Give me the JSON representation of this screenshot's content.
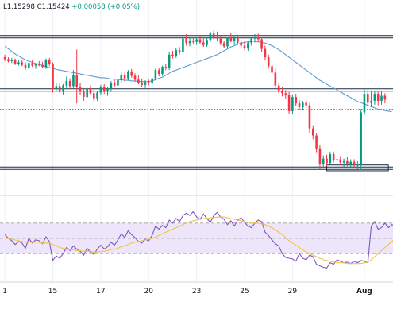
{
  "ohlc": {
    "low": "L1.15298",
    "close": "C1.15424",
    "change": "+0.00058 (+0.05%)"
  },
  "colors": {
    "up": "#089981",
    "down": "#f23645",
    "ma": "#5b9bd5",
    "rsi": "#7e57c2",
    "rsi_ma": "#f0c24b",
    "levels": "#1a2b45",
    "rsi_band": "#ede6fb"
  },
  "chart_data": [
    {
      "type": "candlestick",
      "title": "",
      "x_tick_labels": [
        "1",
        "15",
        "17",
        "20",
        "23",
        "25",
        "29",
        "Aug"
      ],
      "x_tick_index": [
        0,
        14,
        28,
        42,
        56,
        70,
        84,
        105
      ],
      "ylim": [
        1.15,
        1.177
      ],
      "grid": true,
      "horizontal_levels": [
        1.174,
        1.1657,
        1.1535
      ],
      "highlighted_zone": [
        1.1531,
        1.154
      ],
      "current_price_line": 1.1627,
      "moving_average": [
        1.1725,
        1.1721,
        1.1717,
        1.1713,
        1.171,
        1.1707,
        1.1704,
        1.1702,
        1.17,
        1.1698,
        1.1697,
        1.1695,
        1.1693,
        1.1692,
        1.1691,
        1.1689,
        1.1688,
        1.1687,
        1.1686,
        1.1685,
        1.1684,
        1.1683,
        1.1682,
        1.1681,
        1.168,
        1.1679,
        1.1678,
        1.1677,
        1.1676,
        1.1676,
        1.1675,
        1.1674,
        1.1674,
        1.1673,
        1.1673,
        1.1672,
        1.1672,
        1.1671,
        1.1671,
        1.167,
        1.167,
        1.167,
        1.167,
        1.1671,
        1.1673,
        1.1675,
        1.1677,
        1.168,
        1.1683,
        1.1686,
        1.1688,
        1.169,
        1.1692,
        1.1694,
        1.1696,
        1.1698,
        1.17,
        1.1702,
        1.1704,
        1.1706,
        1.1708,
        1.171,
        1.1712,
        1.1715,
        1.1718,
        1.1721,
        1.1724,
        1.1726,
        1.1728,
        1.173,
        1.1731,
        1.1732,
        1.1733,
        1.1733,
        1.1732,
        1.1731,
        1.173,
        1.1728,
        1.1726,
        1.1723,
        1.172,
        1.1716,
        1.1712,
        1.1708,
        1.1704,
        1.17,
        1.1696,
        1.1692,
        1.1688,
        1.1684,
        1.168,
        1.1676,
        1.1672,
        1.1669,
        1.1666,
        1.1663,
        1.166,
        1.1657,
        1.1654,
        1.1651,
        1.1648,
        1.1645,
        1.1642,
        1.1639,
        1.1637,
        1.1635,
        1.1633,
        1.1631,
        1.1629,
        1.1627,
        1.1626,
        1.1625,
        1.1624,
        1.1623
      ],
      "candles": [
        {
          "o": 1.1708,
          "h": 1.1712,
          "l": 1.1702,
          "c": 1.1705
        },
        {
          "o": 1.1705,
          "h": 1.1708,
          "l": 1.17,
          "c": 1.1702
        },
        {
          "o": 1.1702,
          "h": 1.1707,
          "l": 1.1699,
          "c": 1.1704
        },
        {
          "o": 1.1704,
          "h": 1.1706,
          "l": 1.1696,
          "c": 1.1698
        },
        {
          "o": 1.1698,
          "h": 1.1703,
          "l": 1.1695,
          "c": 1.17
        },
        {
          "o": 1.17,
          "h": 1.1704,
          "l": 1.1694,
          "c": 1.1696
        },
        {
          "o": 1.1696,
          "h": 1.17,
          "l": 1.1688,
          "c": 1.1691
        },
        {
          "o": 1.1691,
          "h": 1.1701,
          "l": 1.1689,
          "c": 1.1699
        },
        {
          "o": 1.1699,
          "h": 1.1703,
          "l": 1.1693,
          "c": 1.1695
        },
        {
          "o": 1.1695,
          "h": 1.1699,
          "l": 1.169,
          "c": 1.1697
        },
        {
          "o": 1.1697,
          "h": 1.1702,
          "l": 1.1694,
          "c": 1.1696
        },
        {
          "o": 1.1696,
          "h": 1.1701,
          "l": 1.1691,
          "c": 1.1693
        },
        {
          "o": 1.1693,
          "h": 1.1706,
          "l": 1.169,
          "c": 1.1704
        },
        {
          "o": 1.1704,
          "h": 1.1707,
          "l": 1.1694,
          "c": 1.1697
        },
        {
          "o": 1.1697,
          "h": 1.17,
          "l": 1.1653,
          "c": 1.1658
        },
        {
          "o": 1.1658,
          "h": 1.1667,
          "l": 1.1655,
          "c": 1.1663
        },
        {
          "o": 1.1663,
          "h": 1.1668,
          "l": 1.1652,
          "c": 1.1656
        },
        {
          "o": 1.1656,
          "h": 1.1666,
          "l": 1.165,
          "c": 1.1664
        },
        {
          "o": 1.1664,
          "h": 1.1678,
          "l": 1.1658,
          "c": 1.1671
        },
        {
          "o": 1.1671,
          "h": 1.1675,
          "l": 1.166,
          "c": 1.1663
        },
        {
          "o": 1.1663,
          "h": 1.1688,
          "l": 1.166,
          "c": 1.168
        },
        {
          "o": 1.168,
          "h": 1.172,
          "l": 1.1636,
          "c": 1.1662
        },
        {
          "o": 1.1662,
          "h": 1.1668,
          "l": 1.165,
          "c": 1.1655
        },
        {
          "o": 1.1655,
          "h": 1.166,
          "l": 1.164,
          "c": 1.1646
        },
        {
          "o": 1.1646,
          "h": 1.1662,
          "l": 1.1643,
          "c": 1.1659
        },
        {
          "o": 1.1659,
          "h": 1.1664,
          "l": 1.165,
          "c": 1.1652
        },
        {
          "o": 1.1652,
          "h": 1.1658,
          "l": 1.1638,
          "c": 1.1644
        },
        {
          "o": 1.1644,
          "h": 1.1656,
          "l": 1.164,
          "c": 1.1653
        },
        {
          "o": 1.1653,
          "h": 1.1665,
          "l": 1.1649,
          "c": 1.1661
        },
        {
          "o": 1.1661,
          "h": 1.1666,
          "l": 1.1651,
          "c": 1.1655
        },
        {
          "o": 1.1655,
          "h": 1.1662,
          "l": 1.1648,
          "c": 1.1658
        },
        {
          "o": 1.1658,
          "h": 1.1671,
          "l": 1.1654,
          "c": 1.1668
        },
        {
          "o": 1.1668,
          "h": 1.1674,
          "l": 1.1661,
          "c": 1.1664
        },
        {
          "o": 1.1664,
          "h": 1.1676,
          "l": 1.166,
          "c": 1.1672
        },
        {
          "o": 1.1672,
          "h": 1.1684,
          "l": 1.1668,
          "c": 1.168
        },
        {
          "o": 1.168,
          "h": 1.1684,
          "l": 1.167,
          "c": 1.1675
        },
        {
          "o": 1.1675,
          "h": 1.1688,
          "l": 1.1672,
          "c": 1.1686
        },
        {
          "o": 1.1686,
          "h": 1.169,
          "l": 1.1676,
          "c": 1.1679
        },
        {
          "o": 1.1679,
          "h": 1.1683,
          "l": 1.167,
          "c": 1.1673
        },
        {
          "o": 1.1673,
          "h": 1.168,
          "l": 1.1666,
          "c": 1.1668
        },
        {
          "o": 1.1668,
          "h": 1.1674,
          "l": 1.1661,
          "c": 1.1665
        },
        {
          "o": 1.1665,
          "h": 1.1672,
          "l": 1.166,
          "c": 1.1669
        },
        {
          "o": 1.1669,
          "h": 1.1673,
          "l": 1.1664,
          "c": 1.1667
        },
        {
          "o": 1.1667,
          "h": 1.1677,
          "l": 1.1663,
          "c": 1.1675
        },
        {
          "o": 1.1675,
          "h": 1.169,
          "l": 1.1672,
          "c": 1.1688
        },
        {
          "o": 1.1688,
          "h": 1.1692,
          "l": 1.1678,
          "c": 1.1682
        },
        {
          "o": 1.1682,
          "h": 1.1695,
          "l": 1.1679,
          "c": 1.1693
        },
        {
          "o": 1.1693,
          "h": 1.1698,
          "l": 1.1688,
          "c": 1.1691
        },
        {
          "o": 1.1691,
          "h": 1.1716,
          "l": 1.1688,
          "c": 1.1712
        },
        {
          "o": 1.1712,
          "h": 1.1718,
          "l": 1.1706,
          "c": 1.171
        },
        {
          "o": 1.171,
          "h": 1.1722,
          "l": 1.1707,
          "c": 1.1719
        },
        {
          "o": 1.1719,
          "h": 1.1724,
          "l": 1.1712,
          "c": 1.1716
        },
        {
          "o": 1.1716,
          "h": 1.1741,
          "l": 1.1713,
          "c": 1.1737
        },
        {
          "o": 1.1737,
          "h": 1.1744,
          "l": 1.1726,
          "c": 1.173
        },
        {
          "o": 1.173,
          "h": 1.1738,
          "l": 1.1725,
          "c": 1.1734
        },
        {
          "o": 1.1734,
          "h": 1.174,
          "l": 1.1729,
          "c": 1.1732
        },
        {
          "o": 1.1732,
          "h": 1.1739,
          "l": 1.1727,
          "c": 1.1736
        },
        {
          "o": 1.1736,
          "h": 1.1742,
          "l": 1.1728,
          "c": 1.1731
        },
        {
          "o": 1.1731,
          "h": 1.1737,
          "l": 1.1724,
          "c": 1.1727
        },
        {
          "o": 1.1727,
          "h": 1.1738,
          "l": 1.1724,
          "c": 1.1735
        },
        {
          "o": 1.1735,
          "h": 1.1748,
          "l": 1.1732,
          "c": 1.1745
        },
        {
          "o": 1.1745,
          "h": 1.175,
          "l": 1.1736,
          "c": 1.174
        },
        {
          "o": 1.174,
          "h": 1.1748,
          "l": 1.1734,
          "c": 1.1737
        },
        {
          "o": 1.1737,
          "h": 1.1741,
          "l": 1.1727,
          "c": 1.173
        },
        {
          "o": 1.173,
          "h": 1.1734,
          "l": 1.1722,
          "c": 1.1725
        },
        {
          "o": 1.1725,
          "h": 1.174,
          "l": 1.1722,
          "c": 1.1738
        },
        {
          "o": 1.1738,
          "h": 1.1746,
          "l": 1.1731,
          "c": 1.1734
        },
        {
          "o": 1.1734,
          "h": 1.1742,
          "l": 1.1727,
          "c": 1.174
        },
        {
          "o": 1.174,
          "h": 1.1743,
          "l": 1.1728,
          "c": 1.1731
        },
        {
          "o": 1.1731,
          "h": 1.1735,
          "l": 1.1721,
          "c": 1.1726
        },
        {
          "o": 1.1726,
          "h": 1.1733,
          "l": 1.1719,
          "c": 1.1722
        },
        {
          "o": 1.1722,
          "h": 1.1733,
          "l": 1.1718,
          "c": 1.173
        },
        {
          "o": 1.173,
          "h": 1.174,
          "l": 1.1726,
          "c": 1.1737
        },
        {
          "o": 1.1737,
          "h": 1.1744,
          "l": 1.1731,
          "c": 1.174
        },
        {
          "o": 1.174,
          "h": 1.1745,
          "l": 1.1733,
          "c": 1.1736
        },
        {
          "o": 1.1736,
          "h": 1.174,
          "l": 1.1716,
          "c": 1.1721
        },
        {
          "o": 1.1721,
          "h": 1.1726,
          "l": 1.1703,
          "c": 1.1708
        },
        {
          "o": 1.1708,
          "h": 1.1712,
          "l": 1.169,
          "c": 1.1694
        },
        {
          "o": 1.1694,
          "h": 1.1698,
          "l": 1.1679,
          "c": 1.1684
        },
        {
          "o": 1.1684,
          "h": 1.169,
          "l": 1.166,
          "c": 1.1664
        },
        {
          "o": 1.1664,
          "h": 1.1668,
          "l": 1.1652,
          "c": 1.1656
        },
        {
          "o": 1.1656,
          "h": 1.1661,
          "l": 1.1647,
          "c": 1.1652
        },
        {
          "o": 1.1652,
          "h": 1.1657,
          "l": 1.1644,
          "c": 1.1649
        },
        {
          "o": 1.1649,
          "h": 1.1654,
          "l": 1.162,
          "c": 1.1624
        },
        {
          "o": 1.1624,
          "h": 1.165,
          "l": 1.162,
          "c": 1.1646
        },
        {
          "o": 1.1646,
          "h": 1.1651,
          "l": 1.1632,
          "c": 1.1636
        },
        {
          "o": 1.1636,
          "h": 1.1641,
          "l": 1.1626,
          "c": 1.163
        },
        {
          "o": 1.163,
          "h": 1.164,
          "l": 1.1625,
          "c": 1.1637
        },
        {
          "o": 1.1637,
          "h": 1.1643,
          "l": 1.1629,
          "c": 1.1633
        },
        {
          "o": 1.1633,
          "h": 1.1637,
          "l": 1.159,
          "c": 1.1597
        },
        {
          "o": 1.1597,
          "h": 1.1602,
          "l": 1.158,
          "c": 1.1586
        },
        {
          "o": 1.1586,
          "h": 1.159,
          "l": 1.156,
          "c": 1.1566
        },
        {
          "o": 1.1566,
          "h": 1.1571,
          "l": 1.1534,
          "c": 1.1541
        },
        {
          "o": 1.1541,
          "h": 1.1555,
          "l": 1.1536,
          "c": 1.155
        },
        {
          "o": 1.155,
          "h": 1.1556,
          "l": 1.1538,
          "c": 1.1543
        },
        {
          "o": 1.1543,
          "h": 1.1561,
          "l": 1.154,
          "c": 1.1557
        },
        {
          "o": 1.1557,
          "h": 1.1561,
          "l": 1.1544,
          "c": 1.1547
        },
        {
          "o": 1.1547,
          "h": 1.1553,
          "l": 1.154,
          "c": 1.1549
        },
        {
          "o": 1.1549,
          "h": 1.1554,
          "l": 1.154,
          "c": 1.1544
        },
        {
          "o": 1.1544,
          "h": 1.155,
          "l": 1.1537,
          "c": 1.1546
        },
        {
          "o": 1.1546,
          "h": 1.1552,
          "l": 1.1538,
          "c": 1.1542
        },
        {
          "o": 1.1542,
          "h": 1.1549,
          "l": 1.1537,
          "c": 1.1545
        },
        {
          "o": 1.1545,
          "h": 1.1549,
          "l": 1.1535,
          "c": 1.1539
        },
        {
          "o": 1.1539,
          "h": 1.1546,
          "l": 1.1532,
          "c": 1.1541
        },
        {
          "o": 1.1541,
          "h": 1.1627,
          "l": 1.1533,
          "c": 1.1622
        },
        {
          "o": 1.1622,
          "h": 1.1658,
          "l": 1.1618,
          "c": 1.1651
        },
        {
          "o": 1.1651,
          "h": 1.1657,
          "l": 1.1632,
          "c": 1.1637
        },
        {
          "o": 1.1637,
          "h": 1.1655,
          "l": 1.163,
          "c": 1.164
        },
        {
          "o": 1.164,
          "h": 1.1656,
          "l": 1.1634,
          "c": 1.1651
        },
        {
          "o": 1.1651,
          "h": 1.1656,
          "l": 1.1633,
          "c": 1.164
        },
        {
          "o": 1.164,
          "h": 1.1655,
          "l": 1.1634,
          "c": 1.1648
        },
        {
          "o": 1.1648,
          "h": 1.1652,
          "l": 1.1636,
          "c": 1.1642
        }
      ]
    },
    {
      "type": "line",
      "title": "",
      "ylim": [
        0,
        100
      ],
      "levels": [
        70,
        50,
        30
      ],
      "band": [
        30,
        70
      ],
      "series": [
        {
          "values": [
            55,
            50,
            47,
            42,
            46,
            44,
            37,
            50,
            44,
            48,
            47,
            43,
            52,
            46,
            21,
            27,
            24,
            30,
            38,
            34,
            40,
            36,
            33,
            28,
            37,
            32,
            29,
            36,
            41,
            36,
            39,
            45,
            41,
            48,
            56,
            51,
            60,
            55,
            51,
            46,
            44,
            49,
            47,
            54,
            66,
            62,
            67,
            64,
            74,
            70,
            76,
            72,
            80,
            83,
            80,
            85,
            78,
            75,
            82,
            76,
            71,
            80,
            84,
            78,
            75,
            68,
            73,
            66,
            74,
            77,
            71,
            66,
            64,
            70,
            74,
            72,
            58,
            54,
            48,
            43,
            40,
            30,
            25,
            24,
            23,
            20,
            30,
            24,
            22,
            28,
            26,
            16,
            14,
            12,
            11,
            18,
            16,
            22,
            20,
            18,
            19,
            17,
            20,
            18,
            21,
            20,
            18,
            66,
            72,
            62,
            64,
            70,
            64,
            68,
            66,
            67
          ]
        },
        {
          "values": [
            50,
            50,
            49,
            48,
            47,
            46,
            45,
            45,
            45,
            45,
            45,
            44,
            44,
            44,
            42,
            40,
            38,
            37,
            36,
            35,
            35,
            34,
            34,
            33,
            33,
            33,
            32,
            32,
            33,
            33,
            34,
            35,
            36,
            37,
            39,
            40,
            42,
            44,
            45,
            46,
            47,
            48,
            49,
            50,
            52,
            54,
            56,
            58,
            60,
            62,
            64,
            66,
            68,
            70,
            72,
            73,
            74,
            75,
            76,
            76,
            77,
            77,
            78,
            78,
            78,
            77,
            76,
            75,
            74,
            73,
            72,
            71,
            70,
            70,
            70,
            69,
            68,
            66,
            64,
            61,
            58,
            55,
            51,
            47,
            44,
            41,
            38,
            35,
            32,
            30,
            28,
            26,
            24,
            22,
            21,
            20,
            19,
            18,
            18,
            18,
            17,
            17,
            17,
            17,
            17,
            18,
            19,
            22,
            26,
            30,
            34,
            38,
            42,
            46,
            50,
            54
          ]
        }
      ]
    }
  ]
}
